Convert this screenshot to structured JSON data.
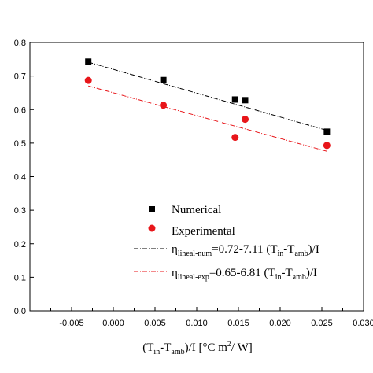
{
  "chart_data": {
    "type": "scatter",
    "title": "",
    "xlim": [
      -0.01,
      0.03
    ],
    "ylim": [
      0.0,
      0.8
    ],
    "xticks": [
      "-0.005",
      "0.000",
      "0.005",
      "0.010",
      "0.015",
      "0.020",
      "0.025",
      "0.030"
    ],
    "xtick_values": [
      -0.005,
      0.0,
      0.005,
      0.01,
      0.015,
      0.02,
      0.025,
      0.03
    ],
    "yticks": [
      "0.0",
      "0.1",
      "0.2",
      "0.3",
      "0.4",
      "0.5",
      "0.6",
      "0.7",
      "0.8"
    ],
    "ytick_values": [
      0.0,
      0.1,
      0.2,
      0.3,
      0.4,
      0.5,
      0.6,
      0.7,
      0.8
    ],
    "grid": false,
    "legend_position": "lower-right",
    "xlabel": {
      "open": "(T",
      "sub1": "in",
      "mid": "-T",
      "sub2": "amb",
      "close": ")/I [°C m",
      "sup": "2",
      "end": "/ W]"
    },
    "ylabel": "",
    "series": [
      {
        "name": "Numerical",
        "marker": "square",
        "color": "#000000",
        "points": [
          [
            -0.003,
            0.743
          ],
          [
            0.006,
            0.688
          ],
          [
            0.0146,
            0.63
          ],
          [
            0.0158,
            0.628
          ],
          [
            0.0256,
            0.534
          ]
        ]
      },
      {
        "name": "Experimental",
        "marker": "circle",
        "color": "#e8161a",
        "points": [
          [
            -0.003,
            0.687
          ],
          [
            0.006,
            0.613
          ],
          [
            0.0146,
            0.517
          ],
          [
            0.0158,
            0.571
          ],
          [
            0.0256,
            0.493
          ]
        ]
      }
    ],
    "fits": [
      {
        "color": "#000000",
        "intercept": 0.72,
        "slope": -7.11,
        "x_range": [
          -0.003,
          0.0256
        ],
        "label": {
          "eta": "η",
          "sub": "lineal-num",
          "eq": "=0.72-7.11 (T",
          "s1": "in",
          "mid": "-T",
          "s2": "amb",
          "end": ")/I"
        }
      },
      {
        "color": "#e8161a",
        "intercept": 0.65,
        "slope": -6.81,
        "x_range": [
          -0.003,
          0.0256
        ],
        "label": {
          "eta": "η",
          "sub": "lineal-exp",
          "eq": "=0.65-6.81 (T",
          "s1": "in",
          "mid": "-T",
          "s2": "amb",
          "end": ")/I"
        }
      }
    ]
  }
}
